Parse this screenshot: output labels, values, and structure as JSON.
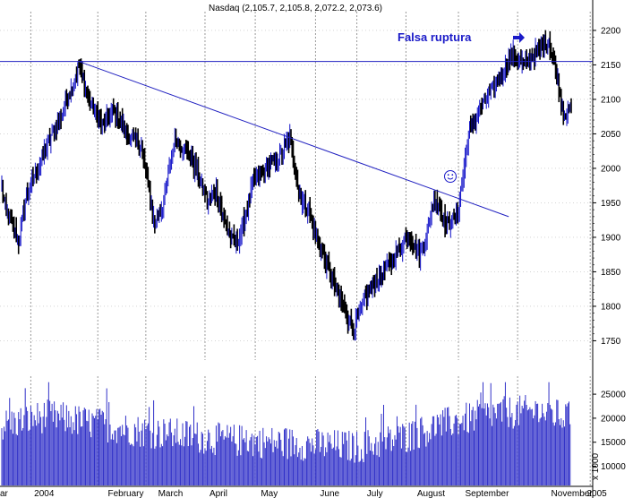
{
  "chart_data": {
    "type": "ohlc",
    "title": "Nasdaq (2,105.7, 2,105.8, 2,072.2, 2,073.6)",
    "annotation": "Falsa ruptura",
    "colors": {
      "up": "#1010c8",
      "down": "#000000",
      "volume": "#3030c8",
      "trendline": "#2020c0",
      "grid": "#9a9a9a"
    },
    "x_month_labels": [
      "ar",
      "2004",
      "February",
      "March",
      "April",
      "May",
      "June",
      "July",
      "August",
      "September",
      "November",
      "2005"
    ],
    "price_axis": {
      "ticks": [
        1750,
        1800,
        1850,
        1900,
        1950,
        2000,
        2050,
        2100,
        2150,
        2200
      ],
      "ylim": [
        1735,
        2222
      ]
    },
    "volume_axis": {
      "ticks": [
        10000,
        15000,
        20000,
        25000
      ],
      "unit_label": "x 1000",
      "ylim": [
        6000,
        28000
      ]
    },
    "resistance_level": 2155,
    "trendline": {
      "from": {
        "index": 69,
        "price": 2155
      },
      "to": {
        "index": 454,
        "price": 1930
      }
    },
    "price_anchors": [
      [
        0,
        1975
      ],
      [
        4,
        1935
      ],
      [
        15,
        1895
      ],
      [
        22,
        1960
      ],
      [
        30,
        1990
      ],
      [
        42,
        2040
      ],
      [
        52,
        2070
      ],
      [
        60,
        2105
      ],
      [
        69,
        2150
      ],
      [
        78,
        2100
      ],
      [
        90,
        2060
      ],
      [
        100,
        2085
      ],
      [
        112,
        2050
      ],
      [
        125,
        2030
      ],
      [
        137,
        1920
      ],
      [
        145,
        1950
      ],
      [
        155,
        2045
      ],
      [
        168,
        2020
      ],
      [
        177,
        1985
      ],
      [
        185,
        1950
      ],
      [
        192,
        1970
      ],
      [
        198,
        1930
      ],
      [
        208,
        1890
      ],
      [
        215,
        1910
      ],
      [
        225,
        1980
      ],
      [
        238,
        2000
      ],
      [
        248,
        2015
      ],
      [
        258,
        2045
      ],
      [
        266,
        1965
      ],
      [
        274,
        1940
      ],
      [
        284,
        1890
      ],
      [
        296,
        1840
      ],
      [
        305,
        1800
      ],
      [
        315,
        1765
      ],
      [
        325,
        1810
      ],
      [
        335,
        1835
      ],
      [
        345,
        1855
      ],
      [
        355,
        1880
      ],
      [
        365,
        1905
      ],
      [
        373,
        1875
      ],
      [
        380,
        1900
      ],
      [
        388,
        1960
      ],
      [
        398,
        1915
      ],
      [
        408,
        1930
      ],
      [
        418,
        2050
      ],
      [
        428,
        2085
      ],
      [
        438,
        2110
      ],
      [
        448,
        2140
      ],
      [
        458,
        2165
      ],
      [
        468,
        2150
      ],
      [
        480,
        2170
      ],
      [
        490,
        2185
      ],
      [
        497,
        2135
      ],
      [
        503,
        2080
      ],
      [
        510,
        2085
      ]
    ],
    "volume_levels": [
      [
        0,
        18500
      ],
      [
        40,
        20500
      ],
      [
        80,
        19000
      ],
      [
        120,
        17500
      ],
      [
        160,
        16500
      ],
      [
        200,
        15500
      ],
      [
        240,
        15000
      ],
      [
        280,
        14500
      ],
      [
        320,
        14000
      ],
      [
        360,
        16000
      ],
      [
        400,
        19000
      ],
      [
        440,
        21000
      ],
      [
        480,
        21500
      ],
      [
        510,
        20000
      ]
    ]
  }
}
